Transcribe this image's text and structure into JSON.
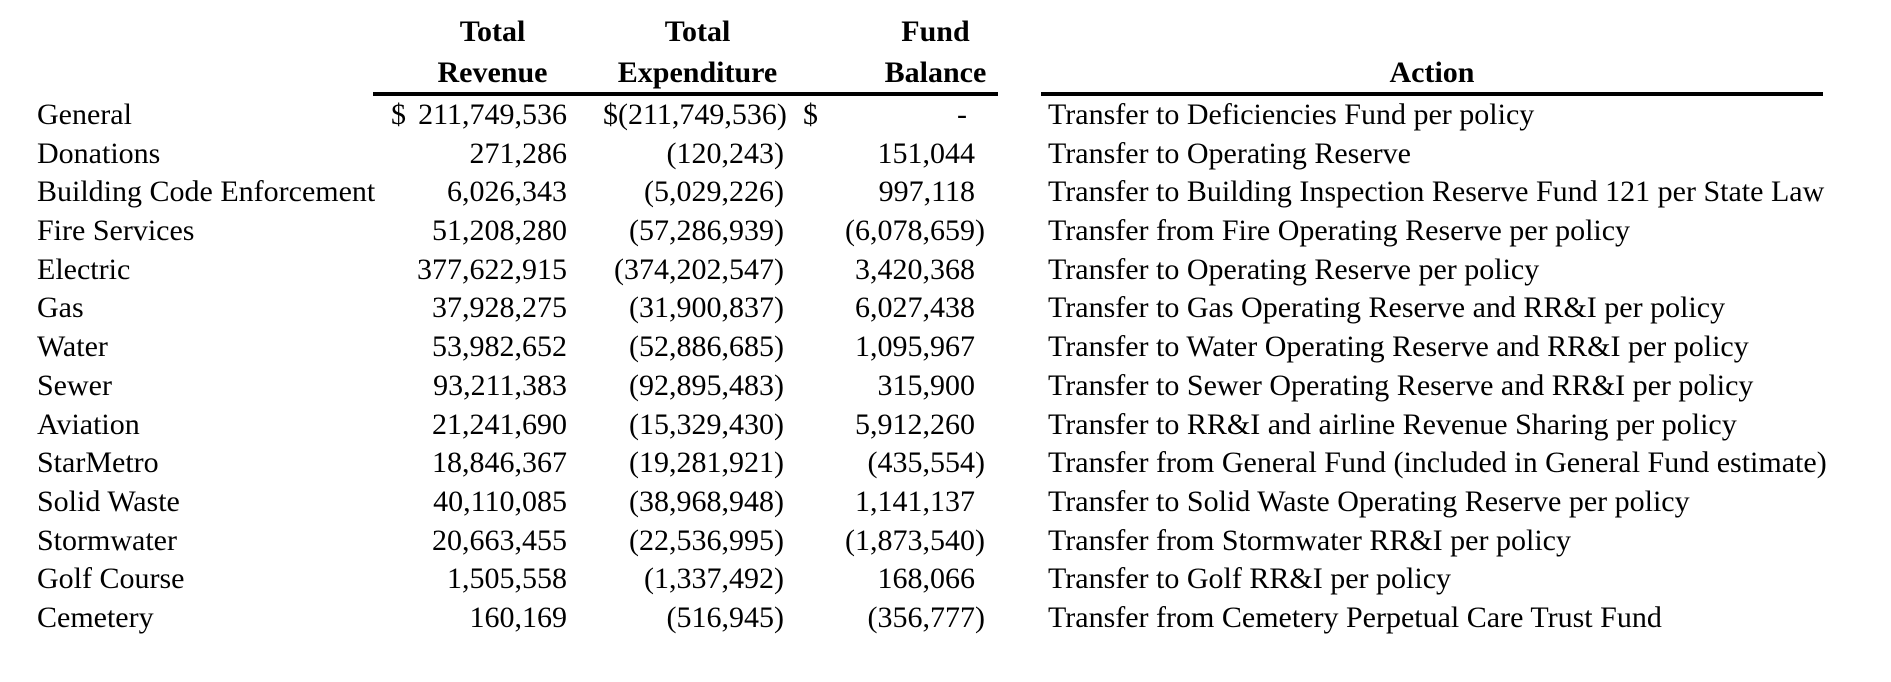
{
  "style": {
    "text_color": "#000000",
    "background_color": "#ffffff",
    "rule_color": "#000000"
  },
  "table": {
    "headers": {
      "revenue": [
        "Total",
        "Revenue"
      ],
      "expenditure": [
        "Total",
        "Expenditure"
      ],
      "balance": [
        "Fund",
        "Balance"
      ],
      "action": "Action"
    },
    "rows": [
      {
        "fund": "General",
        "revenue_currency": "$",
        "revenue": "211,749,536",
        "expenditure_currency": "$",
        "expenditure": "(211,749,536)",
        "balance_currency": "$",
        "balance": "-",
        "action": "Transfer to Deficiencies Fund per policy"
      },
      {
        "fund": "Donations",
        "revenue_currency": "",
        "revenue": "271,286",
        "expenditure_currency": "",
        "expenditure": "(120,243)",
        "balance_currency": "",
        "balance": "151,044",
        "action": "Transfer to Operating Reserve"
      },
      {
        "fund": "Building Code Enforcement",
        "revenue_currency": "",
        "revenue": "6,026,343",
        "expenditure_currency": "",
        "expenditure": "(5,029,226)",
        "balance_currency": "",
        "balance": "997,118",
        "action": "Transfer to Building Inspection Reserve Fund 121 per State Law"
      },
      {
        "fund": "Fire Services",
        "revenue_currency": "",
        "revenue": "51,208,280",
        "expenditure_currency": "",
        "expenditure": "(57,286,939)",
        "balance_currency": "",
        "balance": "(6,078,659)",
        "action": "Transfer from Fire Operating Reserve per policy"
      },
      {
        "fund": "Electric",
        "revenue_currency": "",
        "revenue": "377,622,915",
        "expenditure_currency": "",
        "expenditure": "(374,202,547)",
        "balance_currency": "",
        "balance": "3,420,368",
        "action": "Transfer to Operating Reserve per policy"
      },
      {
        "fund": "Gas",
        "revenue_currency": "",
        "revenue": "37,928,275",
        "expenditure_currency": "",
        "expenditure": "(31,900,837)",
        "balance_currency": "",
        "balance": "6,027,438",
        "action": "Transfer to Gas Operating Reserve and RR&I per policy"
      },
      {
        "fund": "Water",
        "revenue_currency": "",
        "revenue": "53,982,652",
        "expenditure_currency": "",
        "expenditure": "(52,886,685)",
        "balance_currency": "",
        "balance": "1,095,967",
        "action": "Transfer to Water Operating Reserve and RR&I per policy"
      },
      {
        "fund": "Sewer",
        "revenue_currency": "",
        "revenue": "93,211,383",
        "expenditure_currency": "",
        "expenditure": "(92,895,483)",
        "balance_currency": "",
        "balance": "315,900",
        "action": "Transfer to Sewer Operating Reserve and RR&I per policy"
      },
      {
        "fund": "Aviation",
        "revenue_currency": "",
        "revenue": "21,241,690",
        "expenditure_currency": "",
        "expenditure": "(15,329,430)",
        "balance_currency": "",
        "balance": "5,912,260",
        "action": "Transfer to RR&I and airline Revenue Sharing per policy"
      },
      {
        "fund": "StarMetro",
        "revenue_currency": "",
        "revenue": "18,846,367",
        "expenditure_currency": "",
        "expenditure": "(19,281,921)",
        "balance_currency": "",
        "balance": "(435,554)",
        "action": "Transfer from General Fund (included in General Fund estimate)"
      },
      {
        "fund": "Solid Waste",
        "revenue_currency": "",
        "revenue": "40,110,085",
        "expenditure_currency": "",
        "expenditure": "(38,968,948)",
        "balance_currency": "",
        "balance": "1,141,137",
        "action": "Transfer to Solid Waste Operating Reserve per policy"
      },
      {
        "fund": "Stormwater",
        "revenue_currency": "",
        "revenue": "20,663,455",
        "expenditure_currency": "",
        "expenditure": "(22,536,995)",
        "balance_currency": "",
        "balance": "(1,873,540)",
        "action": "Transfer from Stormwater RR&I per policy"
      },
      {
        "fund": "Golf Course",
        "revenue_currency": "",
        "revenue": "1,505,558",
        "expenditure_currency": "",
        "expenditure": "(1,337,492)",
        "balance_currency": "",
        "balance": "168,066",
        "action": "Transfer to Golf RR&I per policy"
      },
      {
        "fund": "Cemetery",
        "revenue_currency": "",
        "revenue": "160,169",
        "expenditure_currency": "",
        "expenditure": "(516,945)",
        "balance_currency": "",
        "balance": "(356,777)",
        "action": "Transfer from Cemetery Perpetual Care Trust Fund"
      }
    ]
  }
}
